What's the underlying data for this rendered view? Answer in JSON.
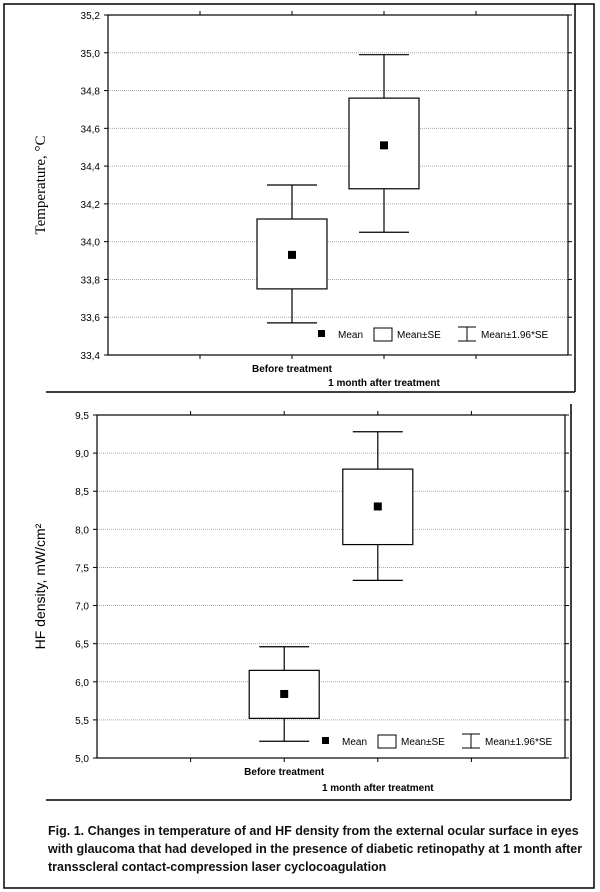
{
  "chart_data": [
    {
      "type": "box",
      "ylabel": "Temperature, °C",
      "ylim": [
        33.4,
        35.2
      ],
      "yticks": [
        "33,4",
        "33,6",
        "33,8",
        "34,0",
        "34,2",
        "34,4",
        "34,6",
        "34,8",
        "35,0",
        "35,2"
      ],
      "ytick_values": [
        33.4,
        33.6,
        33.8,
        34.0,
        34.2,
        34.4,
        34.6,
        34.8,
        35.0,
        35.2
      ],
      "categories": [
        "Before treatment",
        "1 month after treatment"
      ],
      "mean": [
        33.93,
        34.51
      ],
      "se_low": [
        33.75,
        34.28
      ],
      "se_high": [
        34.12,
        34.76
      ],
      "ci_low": [
        33.57,
        34.05
      ],
      "ci_high": [
        34.3,
        34.99
      ],
      "grid": true,
      "legend": [
        "Mean",
        "Mean±SE",
        "Mean±1.96*SE"
      ],
      "legend_position": "bottom-right"
    },
    {
      "type": "box",
      "ylabel": "HF density, mW/cm²",
      "ylim": [
        5.0,
        9.5
      ],
      "yticks": [
        "5,0",
        "5,5",
        "6,0",
        "6,5",
        "7,0",
        "7,5",
        "8,0",
        "8,5",
        "9,0",
        "9,5"
      ],
      "ytick_values": [
        5.0,
        5.5,
        6.0,
        6.5,
        7.0,
        7.5,
        8.0,
        8.5,
        9.0,
        9.5
      ],
      "categories": [
        "Before treatment",
        "1 month after treatment"
      ],
      "mean": [
        5.84,
        8.3
      ],
      "se_low": [
        5.52,
        7.8
      ],
      "se_high": [
        6.15,
        8.79
      ],
      "ci_low": [
        5.22,
        7.33
      ],
      "ci_high": [
        6.46,
        9.28
      ],
      "grid": true,
      "legend": [
        "Mean",
        "Mean±SE",
        "Mean±1.96*SE"
      ],
      "legend_position": "bottom-right"
    }
  ],
  "caption": "Fig. 1. Changes in temperature of and HF density from the external ocular surface in eyes with glaucoma that had developed in the presence of diabetic retinopathy at 1 month after transscleral contact-compression laser cyclocoagulation"
}
